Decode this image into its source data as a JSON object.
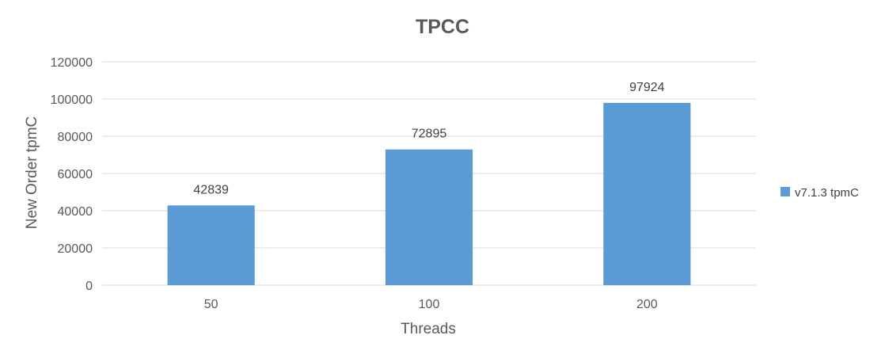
{
  "chart_data": {
    "type": "bar",
    "title": "TPCC",
    "xlabel": "Threads",
    "ylabel": "New Order tpmC",
    "categories": [
      "50",
      "100",
      "200"
    ],
    "series": [
      {
        "name": "v7.1.3 tpmC",
        "values": [
          42839,
          72895,
          97924
        ],
        "color": "#5b9bd5"
      }
    ],
    "ylim": [
      0,
      120000
    ],
    "yticks": [
      0,
      20000,
      40000,
      60000,
      80000,
      100000,
      120000
    ],
    "grid": true,
    "legend_position": "right"
  }
}
